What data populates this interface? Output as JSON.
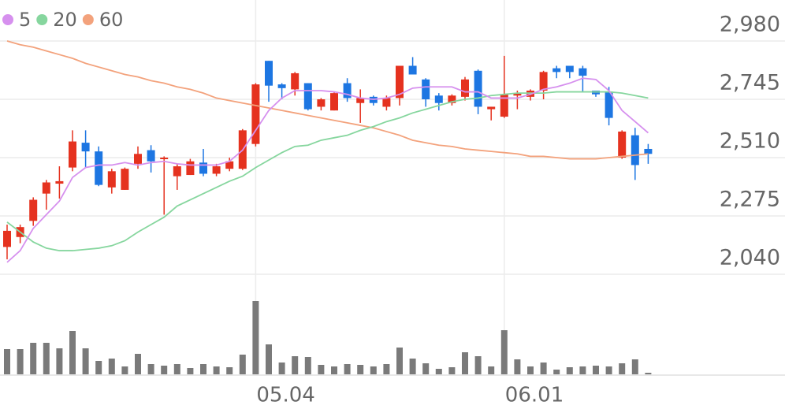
{
  "chart_data": {
    "type": "candlestick",
    "categories": [
      null,
      null,
      null,
      null,
      null,
      null,
      null,
      null,
      null,
      null,
      null,
      null,
      null,
      null,
      null,
      null,
      null,
      null,
      null,
      "05.04",
      null,
      null,
      null,
      null,
      null,
      null,
      null,
      null,
      null,
      null,
      null,
      null,
      null,
      null,
      null,
      null,
      null,
      null,
      "06.01",
      null,
      null,
      null,
      null,
      null,
      null,
      null,
      null,
      null,
      null,
      null
    ],
    "open": [
      2150,
      2190,
      2255,
      2365,
      2405,
      2470,
      2570,
      2535,
      2390,
      2380,
      2485,
      2540,
      2505,
      2435,
      2440,
      2490,
      2445,
      2465,
      2465,
      2565,
      2900,
      2805,
      2785,
      2810,
      2715,
      2700,
      2810,
      2730,
      2755,
      2715,
      2750,
      2880,
      2825,
      2760,
      2730,
      2755,
      2860,
      2705,
      2675,
      2760,
      2755,
      2780,
      2870,
      2880,
      2870,
      2780,
      2775,
      2510,
      2600,
      2545
    ],
    "high": [
      2240,
      2240,
      2350,
      2420,
      2475,
      2620,
      2620,
      2555,
      2465,
      2470,
      2555,
      2560,
      2515,
      2485,
      2505,
      2545,
      2485,
      2510,
      2625,
      2810,
      2900,
      2810,
      2855,
      2810,
      2750,
      2775,
      2830,
      2785,
      2760,
      2760,
      2880,
      2915,
      2830,
      2770,
      2765,
      2835,
      2865,
      2715,
      2920,
      2780,
      2785,
      2860,
      2880,
      2880,
      2880,
      2780,
      2795,
      2620,
      2630,
      2565
    ],
    "low": [
      2100,
      2165,
      2235,
      2300,
      2345,
      2455,
      2470,
      2395,
      2365,
      2380,
      2465,
      2450,
      2280,
      2380,
      2440,
      2435,
      2435,
      2455,
      2460,
      2555,
      2735,
      2745,
      2760,
      2700,
      2700,
      2700,
      2735,
      2650,
      2720,
      2700,
      2720,
      2845,
      2715,
      2700,
      2720,
      2740,
      2685,
      2660,
      2670,
      2705,
      2740,
      2745,
      2830,
      2830,
      2775,
      2755,
      2640,
      2505,
      2420,
      2485
    ],
    "close": [
      2215,
      2230,
      2340,
      2410,
      2415,
      2575,
      2535,
      2400,
      2455,
      2465,
      2525,
      2495,
      2510,
      2475,
      2495,
      2445,
      2475,
      2495,
      2620,
      2805,
      2800,
      2790,
      2850,
      2705,
      2745,
      2770,
      2750,
      2750,
      2730,
      2750,
      2880,
      2845,
      2745,
      2730,
      2760,
      2825,
      2715,
      2715,
      2765,
      2770,
      2780,
      2855,
      2855,
      2855,
      2840,
      2765,
      2670,
      2615,
      2480,
      2525
    ],
    "volume": [
      32,
      32,
      40,
      40,
      33,
      55,
      33,
      17,
      20,
      10,
      26,
      13,
      11,
      13,
      8,
      13,
      10,
      9,
      25,
      93,
      38,
      15,
      23,
      22,
      12,
      10,
      13,
      12,
      10,
      13,
      34,
      20,
      14,
      7,
      9,
      28,
      23,
      10,
      56,
      19,
      10,
      15,
      6,
      9,
      10,
      11,
      10,
      14,
      19,
      2
    ],
    "volume_lim": [
      0,
      100
    ],
    "up_color": "#e5321f",
    "down_color": "#1d76e2",
    "volume_color": "#7a7a7a",
    "moving_averages": [
      {
        "name": "5",
        "color": "#d690ee",
        "values": [
          2088,
          2135,
          2225,
          2280,
          2335,
          2430,
          2470,
          2480,
          2480,
          2490,
          2480,
          2490,
          2495,
          2485,
          2480,
          2480,
          2480,
          2495,
          2540,
          2620,
          2700,
          2750,
          2780,
          2780,
          2780,
          2775,
          2765,
          2750,
          2745,
          2750,
          2765,
          2790,
          2795,
          2795,
          2795,
          2775,
          2775,
          2750,
          2750,
          2750,
          2765,
          2785,
          2795,
          2810,
          2830,
          2825,
          2780,
          2700,
          2655,
          2610
        ]
      },
      {
        "name": "20",
        "color": "#86d69e",
        "values": [
          2250,
          2210,
          2170,
          2145,
          2135,
          2135,
          2140,
          2145,
          2155,
          2175,
          2210,
          2240,
          2270,
          2315,
          2340,
          2365,
          2390,
          2415,
          2435,
          2470,
          2500,
          2530,
          2555,
          2560,
          2580,
          2590,
          2600,
          2620,
          2635,
          2655,
          2670,
          2690,
          2705,
          2720,
          2735,
          2745,
          2750,
          2760,
          2765,
          2770,
          2770,
          2770,
          2775,
          2775,
          2775,
          2775,
          2775,
          2770,
          2760,
          2750
        ]
      },
      {
        "name": "60",
        "color": "#f3a27c",
        "values": [
          2980,
          2965,
          2955,
          2940,
          2925,
          2910,
          2890,
          2875,
          2860,
          2845,
          2835,
          2820,
          2810,
          2795,
          2785,
          2770,
          2750,
          2740,
          2730,
          2720,
          2710,
          2700,
          2690,
          2680,
          2670,
          2660,
          2650,
          2640,
          2630,
          2615,
          2600,
          2580,
          2570,
          2560,
          2555,
          2545,
          2540,
          2535,
          2530,
          2525,
          2515,
          2515,
          2510,
          2505,
          2505,
          2505,
          2510,
          2515,
          2520,
          2525
        ]
      }
    ],
    "ylim": [
      2040,
      2980
    ],
    "yticks": [
      {
        "value": 2040,
        "label": "2,040"
      },
      {
        "value": 2275,
        "label": "2,275"
      },
      {
        "value": 2510,
        "label": "2,510"
      },
      {
        "value": 2745,
        "label": "2,745"
      },
      {
        "value": 2980,
        "label": "2,980"
      }
    ],
    "grid": true
  }
}
